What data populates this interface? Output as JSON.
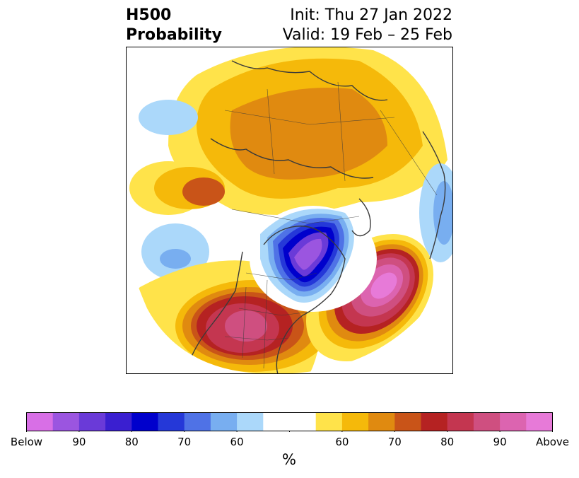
{
  "title": {
    "left_line1": "H500",
    "left_line2": "Probability",
    "right_line1": "Init: Thu 27 Jan 2022",
    "right_line2": "Valid: 19 Feb – 25 Feb"
  },
  "colorbar": {
    "colors": [
      "#d86fe6",
      "#9b55e0",
      "#6a3ad8",
      "#3a1fd0",
      "#0000cc",
      "#2538d8",
      "#4f72e6",
      "#78aef0",
      "#abd8fa",
      "#ffffff",
      "#ffffff",
      "#ffe34a",
      "#f5b90a",
      "#e08a10",
      "#c95418",
      "#b52222",
      "#c43650",
      "#cf4f80",
      "#dc64b0",
      "#e77ad8"
    ],
    "tick_labels": [
      "Below",
      "90",
      "80",
      "70",
      "60",
      "",
      "60",
      "70",
      "80",
      "90",
      "Above"
    ],
    "unit_label": "%"
  },
  "map": {
    "projection": "polar stereographic (North Hemisphere)",
    "anomalies": [
      {
        "region": "Alaska / Siberia / Arctic",
        "category": "above",
        "level": "50-70"
      },
      {
        "region": "Eurasia north",
        "category": "above",
        "level": "60-75"
      },
      {
        "region": "Central-Western USA",
        "category": "above",
        "level": "80-90"
      },
      {
        "region": "North Atlantic",
        "category": "above",
        "level": "85-100"
      },
      {
        "region": "Eastern Canada / Hudson Bay",
        "category": "below",
        "level": "90-100"
      },
      {
        "region": "North Pacific",
        "category": "below",
        "level": "55-65"
      },
      {
        "region": "Europe",
        "category": "below",
        "level": "55-65"
      }
    ]
  }
}
